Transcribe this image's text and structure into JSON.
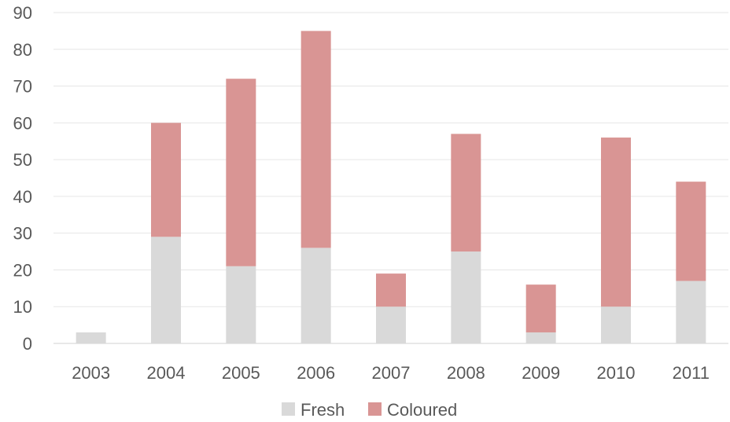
{
  "chart_data": {
    "type": "bar",
    "stacked": true,
    "categories": [
      "2003",
      "2004",
      "2005",
      "2006",
      "2007",
      "2008",
      "2009",
      "2010",
      "2011"
    ],
    "series": [
      {
        "name": "Fresh",
        "color": "#d9d9d9",
        "values": [
          3,
          29,
          21,
          26,
          10,
          25,
          3,
          10,
          17
        ]
      },
      {
        "name": "Coloured",
        "color": "#d99594",
        "values": [
          0,
          31,
          51,
          59,
          9,
          32,
          13,
          46,
          27
        ]
      }
    ],
    "title": "",
    "xlabel": "",
    "ylabel": "",
    "ylim": [
      0,
      90
    ],
    "yticks": [
      "0",
      "10",
      "20",
      "30",
      "40",
      "50",
      "60",
      "70",
      "80",
      "90"
    ],
    "grid": true,
    "legend_position": "bottom"
  }
}
